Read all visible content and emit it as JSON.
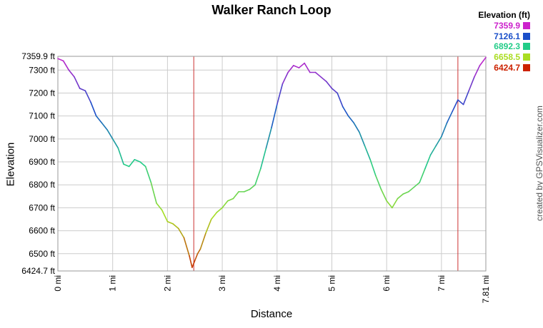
{
  "chart_data": {
    "type": "line",
    "title": "Walker Ranch Loop",
    "xlabel": "Distance",
    "ylabel": "Elevation",
    "credit": "created by GPSVisualizer.com",
    "xlim": [
      0,
      7.81
    ],
    "ylim": [
      6424.7,
      7359.9
    ],
    "x_ticks": [
      {
        "value": 0,
        "label": "0 mi"
      },
      {
        "value": 1,
        "label": "1 mi"
      },
      {
        "value": 2,
        "label": "2 mi"
      },
      {
        "value": 3,
        "label": "3 mi"
      },
      {
        "value": 4,
        "label": "4 mi"
      },
      {
        "value": 5,
        "label": "5 mi"
      },
      {
        "value": 6,
        "label": "6 mi"
      },
      {
        "value": 7,
        "label": "7 mi"
      },
      {
        "value": 7.81,
        "label": "7.81 mi"
      }
    ],
    "y_ticks": [
      {
        "value": 7359.9,
        "label": "7359.9 ft"
      },
      {
        "value": 7300,
        "label": "7300 ft"
      },
      {
        "value": 7200,
        "label": "7200 ft"
      },
      {
        "value": 7100,
        "label": "7100 ft"
      },
      {
        "value": 7000,
        "label": "7000 ft"
      },
      {
        "value": 6900,
        "label": "6900 ft"
      },
      {
        "value": 6800,
        "label": "6800 ft"
      },
      {
        "value": 6700,
        "label": "6700 ft"
      },
      {
        "value": 6600,
        "label": "6600 ft"
      },
      {
        "value": 6500,
        "label": "6500 ft"
      },
      {
        "value": 6424.7,
        "label": "6424.7 ft"
      }
    ],
    "marker_lines_x": [
      2.48,
      7.3
    ],
    "marker_line_color": "#cc3333",
    "grid": true,
    "legend": {
      "title": "Elevation (ft)",
      "position": "top-right",
      "entries": [
        {
          "label": "7359.9",
          "color": "#cc22cc"
        },
        {
          "label": "7126.1",
          "color": "#1a4fc9"
        },
        {
          "label": "6892.3",
          "color": "#22cc88"
        },
        {
          "label": "6658.5",
          "color": "#aadd22"
        },
        {
          "label": "6424.7",
          "color": "#cc2200"
        }
      ]
    },
    "x": [
      0,
      0.1,
      0.2,
      0.3,
      0.4,
      0.5,
      0.6,
      0.7,
      0.8,
      0.9,
      1.0,
      1.1,
      1.2,
      1.3,
      1.4,
      1.5,
      1.6,
      1.7,
      1.8,
      1.9,
      2.0,
      2.1,
      2.2,
      2.3,
      2.4,
      2.45,
      2.5,
      2.55,
      2.6,
      2.7,
      2.8,
      2.9,
      3.0,
      3.1,
      3.2,
      3.3,
      3.4,
      3.5,
      3.6,
      3.7,
      3.8,
      3.9,
      4.0,
      4.1,
      4.2,
      4.3,
      4.4,
      4.5,
      4.6,
      4.7,
      4.8,
      4.9,
      5.0,
      5.1,
      5.2,
      5.3,
      5.4,
      5.5,
      5.6,
      5.7,
      5.8,
      5.9,
      6.0,
      6.1,
      6.2,
      6.3,
      6.4,
      6.5,
      6.6,
      6.7,
      6.8,
      6.9,
      7.0,
      7.1,
      7.2,
      7.3,
      7.4,
      7.5,
      7.6,
      7.7,
      7.81
    ],
    "y": [
      7350,
      7340,
      7300,
      7270,
      7220,
      7210,
      7160,
      7100,
      7070,
      7040,
      7000,
      6960,
      6890,
      6880,
      6910,
      6900,
      6880,
      6810,
      6720,
      6690,
      6640,
      6630,
      6610,
      6570,
      6490,
      6440,
      6470,
      6500,
      6520,
      6590,
      6650,
      6680,
      6700,
      6730,
      6740,
      6770,
      6770,
      6780,
      6800,
      6870,
      6960,
      7050,
      7150,
      7240,
      7290,
      7320,
      7310,
      7330,
      7290,
      7290,
      7270,
      7250,
      7220,
      7200,
      7140,
      7100,
      7070,
      7030,
      6970,
      6910,
      6840,
      6780,
      6730,
      6700,
      6740,
      6760,
      6770,
      6790,
      6810,
      6870,
      6930,
      6970,
      7010,
      7070,
      7120,
      7170,
      7150,
      7210,
      7270,
      7320,
      7355
    ]
  }
}
